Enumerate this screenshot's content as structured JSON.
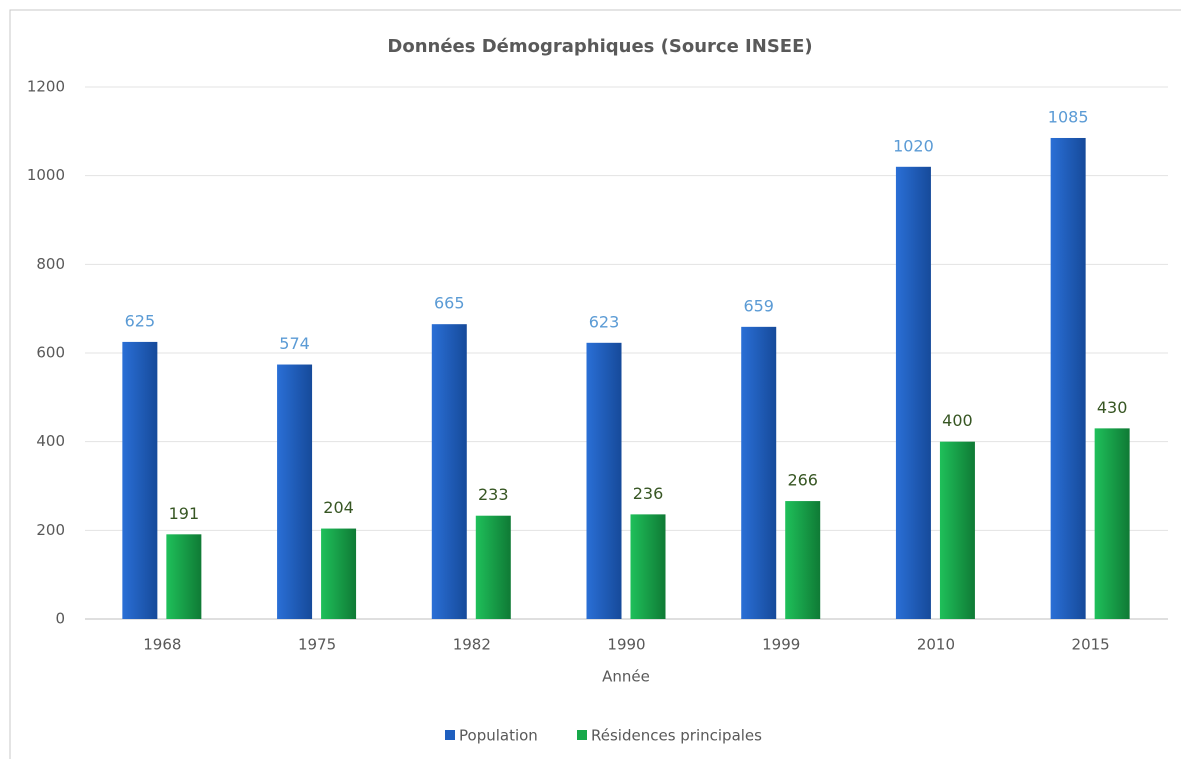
{
  "chart_data": {
    "type": "bar",
    "title": "Données Démographiques (Source INSEE)",
    "x_label": "Année",
    "categories": [
      "1968",
      "1975",
      "1982",
      "1990",
      "1999",
      "2010",
      "2015"
    ],
    "series": [
      {
        "name": "Population",
        "color": "#1f5fbf",
        "values": [
          625,
          574,
          665,
          623,
          659,
          1020,
          1085
        ]
      },
      {
        "name": "Résidences principales",
        "color": "#17a84a",
        "values": [
          191,
          204,
          233,
          236,
          266,
          400,
          430
        ]
      }
    ],
    "ylim": [
      0,
      1200
    ],
    "yticks": [
      0,
      200,
      400,
      600,
      800,
      1000,
      1200
    ],
    "grid": true,
    "legend": "bottom"
  }
}
